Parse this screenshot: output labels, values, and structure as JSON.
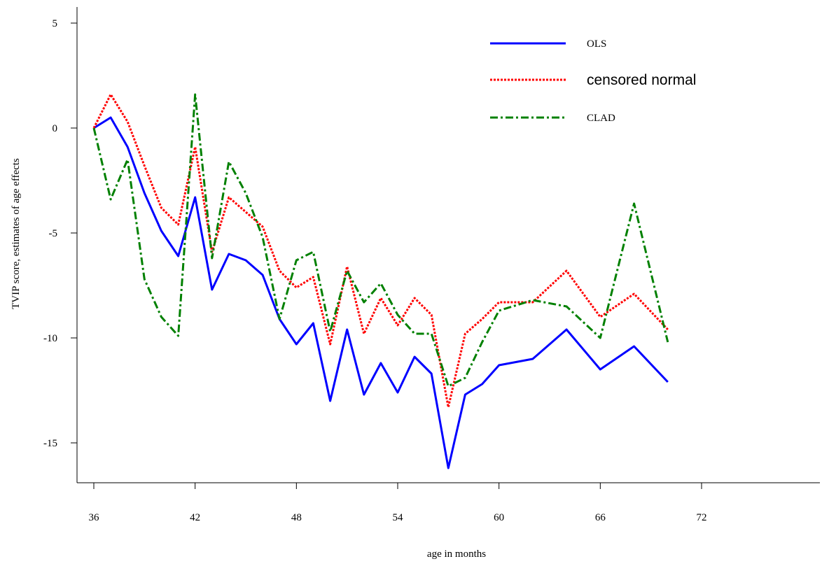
{
  "chart_data": {
    "type": "line",
    "xlabel": "age in months",
    "ylabel": "TVIP score, estimates of age effects",
    "xlim": [
      36,
      72
    ],
    "ylim": [
      -17,
      6
    ],
    "x_ticks": [
      36,
      42,
      48,
      54,
      60,
      66,
      72
    ],
    "y_ticks": [
      5,
      0,
      -5,
      -10,
      -15
    ],
    "legend_position": "top-right",
    "series": [
      {
        "name": "OLS",
        "color": "#0000ff",
        "style": "solid",
        "x": [
          36,
          37,
          38,
          39,
          40,
          41,
          42,
          43,
          44,
          45,
          46,
          47,
          48,
          49,
          50,
          51,
          52,
          53,
          54,
          55,
          56,
          57,
          58,
          59,
          60,
          62,
          64,
          66,
          68,
          70
        ],
        "values": [
          0,
          0.5,
          -0.9,
          -3.1,
          -4.9,
          -6.1,
          -3.3,
          -7.7,
          -6.0,
          -6.3,
          -7.0,
          -9.1,
          -10.3,
          -9.3,
          -13.0,
          -9.6,
          -12.7,
          -11.2,
          -12.6,
          -10.9,
          -11.7,
          -16.2,
          -12.7,
          -12.2,
          -11.3,
          -11.0,
          -9.6,
          -11.5,
          -10.4,
          -12.1
        ]
      },
      {
        "name": "censored normal",
        "color": "#ff0000",
        "style": "dotted",
        "x": [
          36,
          37,
          38,
          39,
          40,
          41,
          42,
          43,
          44,
          45,
          46,
          47,
          48,
          49,
          50,
          51,
          52,
          53,
          54,
          55,
          56,
          57,
          58,
          59,
          60,
          62,
          64,
          66,
          68,
          70
        ],
        "values": [
          0,
          1.6,
          0.3,
          -1.8,
          -3.8,
          -4.6,
          -0.9,
          -5.9,
          -3.3,
          -4.0,
          -4.7,
          -6.8,
          -7.6,
          -7.1,
          -10.3,
          -6.6,
          -9.8,
          -8.1,
          -9.4,
          -8.1,
          -8.9,
          -13.3,
          -9.8,
          -9.1,
          -8.3,
          -8.3,
          -6.8,
          -9.0,
          -7.9,
          -9.6
        ]
      },
      {
        "name": "CLAD",
        "color": "#008000",
        "style": "dash-dot",
        "x": [
          36,
          37,
          38,
          39,
          40,
          41,
          42,
          43,
          44,
          45,
          46,
          47,
          48,
          49,
          50,
          51,
          52,
          53,
          54,
          55,
          56,
          57,
          58,
          59,
          60,
          62,
          64,
          66,
          68,
          70
        ],
        "values": [
          0,
          -3.4,
          -1.5,
          -7.2,
          -9.0,
          -9.9,
          1.6,
          -6.2,
          -1.6,
          -3.1,
          -5.2,
          -9.1,
          -6.3,
          -5.9,
          -9.7,
          -6.8,
          -8.3,
          -7.4,
          -8.9,
          -9.8,
          -9.8,
          -12.3,
          -11.9,
          -10.2,
          -8.7,
          -8.2,
          -8.5,
          -10.0,
          -3.6,
          -10.2
        ]
      }
    ]
  }
}
